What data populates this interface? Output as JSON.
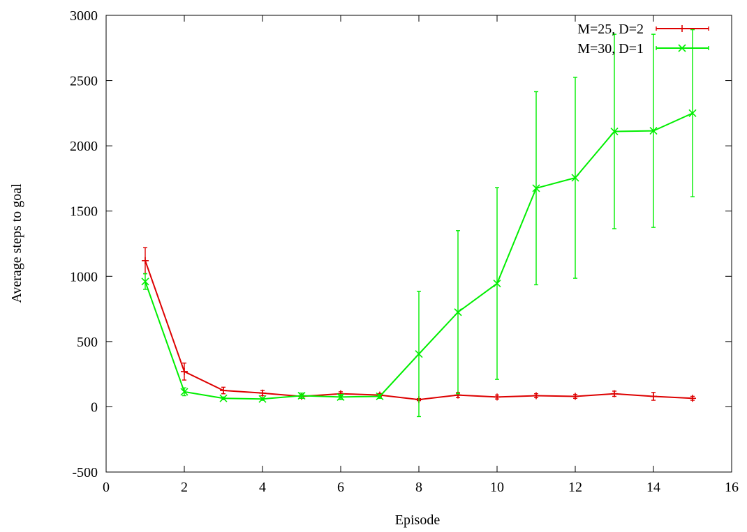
{
  "chart_data": {
    "type": "line",
    "xlabel": "Episode",
    "ylabel": "Average steps to goal",
    "xlim": [
      0,
      16
    ],
    "ylim": [
      -500,
      3000
    ],
    "xticks": [
      0,
      2,
      4,
      6,
      8,
      10,
      12,
      14,
      16
    ],
    "yticks": [
      -500,
      0,
      500,
      1000,
      1500,
      2000,
      2500,
      3000
    ],
    "xtick_labels": [
      "0",
      "2",
      "4",
      "6",
      "8",
      "10",
      "12",
      "14",
      "16"
    ],
    "ytick_labels": [
      "-500",
      "0",
      "500",
      "1000",
      "1500",
      "2000",
      "2500",
      "3000"
    ],
    "grid": false,
    "legend_position": "top-right",
    "error_bars": true,
    "series": [
      {
        "name": "M=25, D=2",
        "color": "#dd0000",
        "marker": "plus",
        "x": [
          1,
          2,
          3,
          4,
          5,
          6,
          7,
          8,
          9,
          10,
          11,
          12,
          13,
          14,
          15
        ],
        "y": [
          1120,
          270,
          125,
          105,
          80,
          100,
          90,
          55,
          90,
          75,
          85,
          80,
          100,
          80,
          65
        ],
        "yerr": [
          100,
          65,
          25,
          20,
          15,
          15,
          12,
          8,
          20,
          15,
          15,
          15,
          20,
          30,
          15
        ]
      },
      {
        "name": "M=30, D=1",
        "color": "#00ee00",
        "marker": "cross",
        "x": [
          1,
          2,
          3,
          4,
          5,
          6,
          7,
          8,
          9,
          10,
          11,
          12,
          13,
          14,
          15
        ],
        "y": [
          960,
          115,
          65,
          60,
          85,
          75,
          80,
          405,
          725,
          945,
          1675,
          1755,
          2110,
          2115,
          2250
        ],
        "yerr": [
          60,
          30,
          10,
          10,
          20,
          20,
          15,
          480,
          625,
          735,
          740,
          770,
          745,
          740,
          640
        ]
      }
    ]
  }
}
